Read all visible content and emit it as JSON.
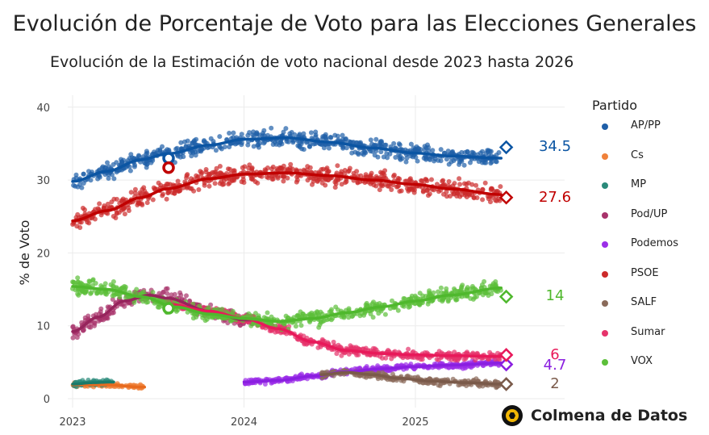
{
  "chart_data": {
    "type": "scatter",
    "title": "Evolución de Porcentaje de Voto para las Elecciones Generales",
    "subtitle": "Evolución de la Estimación de voto nacional desde 2023 hasta 2026",
    "xlabel": "",
    "ylabel": "% de Voto",
    "xlim": [
      2023.0,
      2025.6
    ],
    "ylim": [
      -1,
      41.5
    ],
    "x_ticks": [
      2023,
      2024,
      2025
    ],
    "x_tick_labels": [
      "2023",
      "2024",
      "2025"
    ],
    "y_ticks": [
      0,
      10,
      20,
      30,
      40
    ],
    "y_tick_labels": [
      "0",
      "10",
      "20",
      "30",
      "40"
    ],
    "grid": true,
    "legend_title": "Partido",
    "legend_position": "right",
    "series": [
      {
        "name": "AP/PP",
        "color": "#1f5fa8",
        "line_color": "#0b55a3",
        "final_value": 34.5,
        "final_label": "34.5",
        "trend": [
          [
            2023.0,
            29.8
          ],
          [
            2023.2,
            31.2
          ],
          [
            2023.4,
            32.8
          ],
          [
            2023.55,
            33.6
          ],
          [
            2023.8,
            34.8
          ],
          [
            2024.0,
            35.6
          ],
          [
            2024.25,
            35.8
          ],
          [
            2024.5,
            35.2
          ],
          [
            2024.75,
            34.4
          ],
          [
            2025.0,
            33.7
          ],
          [
            2025.2,
            33.3
          ],
          [
            2025.5,
            33.0
          ]
        ],
        "spread": 1.6,
        "start": 2023.0,
        "end": 2025.5
      },
      {
        "name": "Cs",
        "color": "#f0813a",
        "line_color": "#e86b1f",
        "final_value": null,
        "final_label": "",
        "trend": [
          [
            2023.0,
            1.9
          ],
          [
            2023.2,
            1.9
          ],
          [
            2023.4,
            1.6
          ]
        ],
        "spread": 0.5,
        "start": 2023.0,
        "end": 2023.42
      },
      {
        "name": "MP",
        "color": "#2a8a7a",
        "line_color": "#1b7a6a",
        "final_value": null,
        "final_label": "",
        "trend": [
          [
            2023.0,
            2.0
          ],
          [
            2023.12,
            2.2
          ],
          [
            2023.24,
            2.3
          ]
        ],
        "spread": 0.6,
        "start": 2023.0,
        "end": 2023.24
      },
      {
        "name": "Pod/UP",
        "color": "#a8336b",
        "line_color": "#96245c",
        "final_value": null,
        "final_label": "",
        "trend": [
          [
            2023.0,
            9.2
          ],
          [
            2023.15,
            11.2
          ],
          [
            2023.3,
            13.4
          ],
          [
            2023.45,
            14.2
          ],
          [
            2023.55,
            13.8
          ],
          [
            2023.8,
            12.0
          ],
          [
            2024.0,
            10.8
          ]
        ],
        "spread": 1.5,
        "start": 2023.0,
        "end": 2024.05
      },
      {
        "name": "Podemos",
        "color": "#9b2ee8",
        "line_color": "#8a1fe0",
        "final_value": 4.7,
        "final_label": "4.7",
        "trend": [
          [
            2024.0,
            2.3
          ],
          [
            2024.2,
            2.5
          ],
          [
            2024.4,
            3.1
          ],
          [
            2024.6,
            3.7
          ],
          [
            2024.8,
            4.1
          ],
          [
            2025.0,
            4.4
          ],
          [
            2025.2,
            4.6
          ],
          [
            2025.5,
            4.9
          ]
        ],
        "spread": 0.6,
        "start": 2024.0,
        "end": 2025.5
      },
      {
        "name": "PSOE",
        "color": "#cc2b2b",
        "line_color": "#c00000",
        "final_value": 27.6,
        "final_label": "27.6",
        "trend": [
          [
            2023.0,
            24.4
          ],
          [
            2023.2,
            25.8
          ],
          [
            2023.4,
            27.6
          ],
          [
            2023.55,
            28.8
          ],
          [
            2023.8,
            30.2
          ],
          [
            2024.0,
            30.8
          ],
          [
            2024.25,
            31.0
          ],
          [
            2024.5,
            30.6
          ],
          [
            2024.75,
            30.0
          ],
          [
            2025.0,
            29.4
          ],
          [
            2025.2,
            28.8
          ],
          [
            2025.5,
            28.0
          ]
        ],
        "spread": 1.8,
        "start": 2023.0,
        "end": 2025.5
      },
      {
        "name": "SALF",
        "color": "#8a6a5a",
        "line_color": "#7a5a4a",
        "final_value": 2.0,
        "final_label": "2",
        "trend": [
          [
            2024.45,
            3.3
          ],
          [
            2024.6,
            3.6
          ],
          [
            2024.75,
            3.3
          ],
          [
            2024.9,
            2.8
          ],
          [
            2025.1,
            2.4
          ],
          [
            2025.3,
            2.2
          ],
          [
            2025.5,
            2.0
          ]
        ],
        "spread": 0.7,
        "start": 2024.45,
        "end": 2025.5
      },
      {
        "name": "Sumar",
        "color": "#e6336b",
        "line_color": "#e8195a",
        "final_value": 6.0,
        "final_label": "6",
        "trend": [
          [
            2023.55,
            13.0
          ],
          [
            2023.8,
            12.0
          ],
          [
            2024.0,
            11.0
          ],
          [
            2024.2,
            9.6
          ],
          [
            2024.4,
            7.8
          ],
          [
            2024.6,
            6.6
          ],
          [
            2024.8,
            6.2
          ],
          [
            2025.0,
            6.0
          ],
          [
            2025.2,
            5.9
          ],
          [
            2025.5,
            5.8
          ]
        ],
        "spread": 0.9,
        "start": 2023.55,
        "end": 2025.5
      },
      {
        "name": "VOX",
        "color": "#5cbf3a",
        "line_color": "#4fb82d",
        "final_value": 14.0,
        "final_label": "14",
        "trend": [
          [
            2023.0,
            15.4
          ],
          [
            2023.2,
            15.0
          ],
          [
            2023.4,
            14.0
          ],
          [
            2023.6,
            12.6
          ],
          [
            2023.8,
            11.6
          ],
          [
            2024.0,
            11.0
          ],
          [
            2024.2,
            10.6
          ],
          [
            2024.4,
            11.0
          ],
          [
            2024.6,
            11.8
          ],
          [
            2024.8,
            12.6
          ],
          [
            2025.0,
            13.4
          ],
          [
            2025.2,
            14.2
          ],
          [
            2025.5,
            15.2
          ]
        ],
        "spread": 1.4,
        "start": 2023.0,
        "end": 2025.5
      }
    ],
    "election_markers": [
      {
        "series": "AP/PP",
        "x": 2023.56,
        "y": 33.0
      },
      {
        "series": "PSOE",
        "x": 2023.56,
        "y": 31.7
      },
      {
        "series": "VOX",
        "x": 2023.56,
        "y": 12.4
      }
    ],
    "final_markers_x": 2025.53
  },
  "branding": {
    "logo_text": "Colmena de Datos"
  }
}
